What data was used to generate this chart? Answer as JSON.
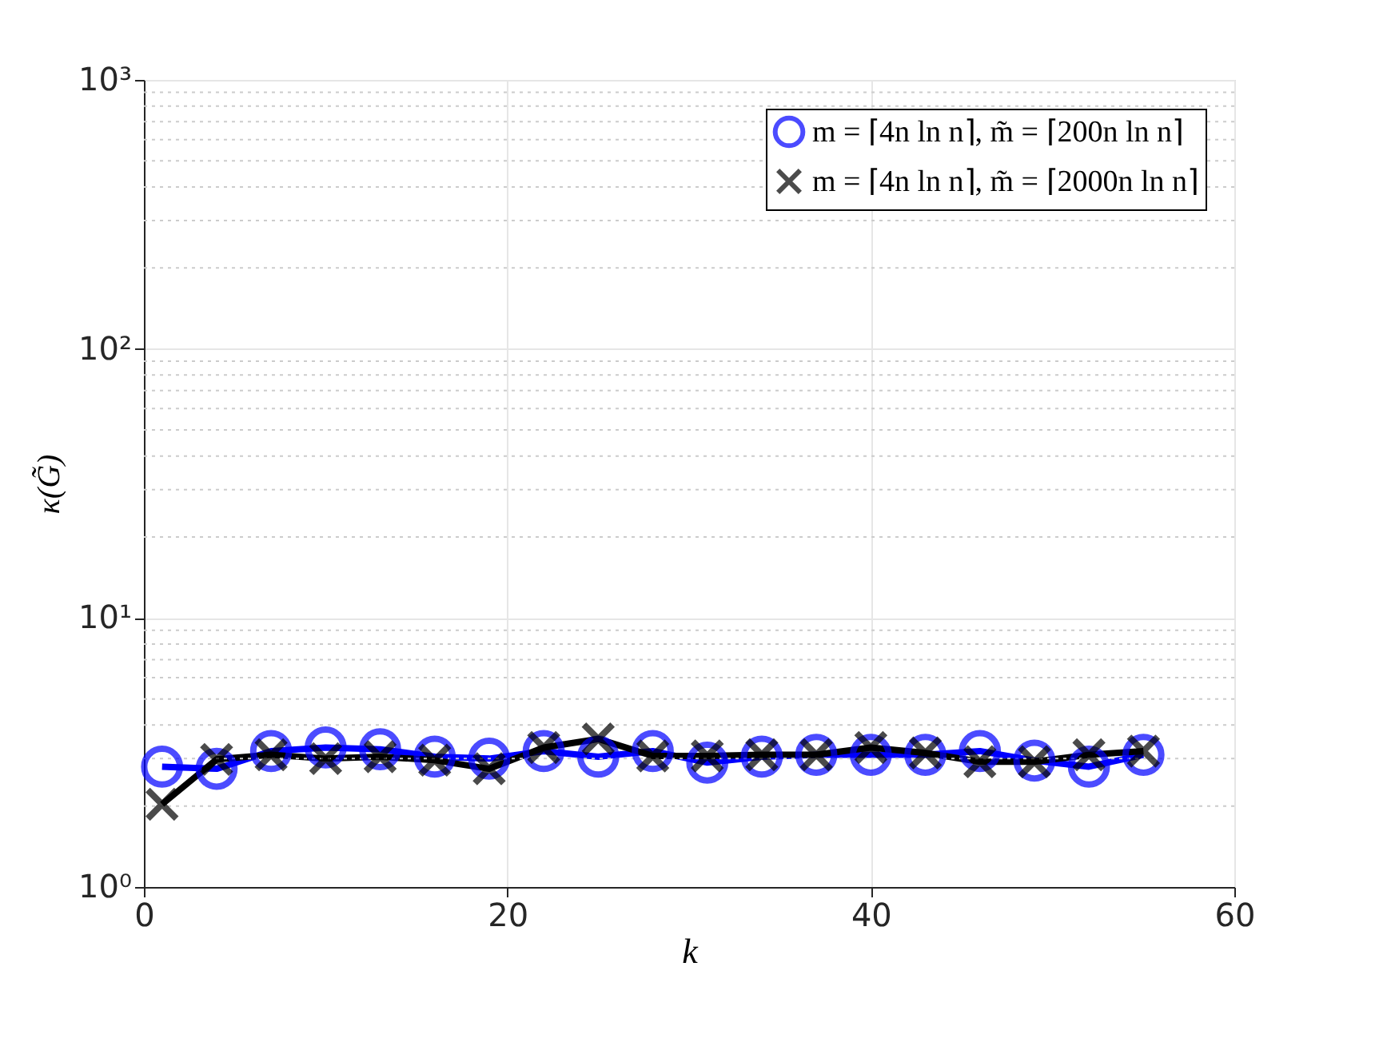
{
  "chart_data": {
    "type": "line",
    "xlabel": "k",
    "ylabel": "κ(G̃)",
    "x": [
      1,
      4,
      7,
      10,
      13,
      16,
      19,
      22,
      25,
      28,
      31,
      34,
      37,
      40,
      43,
      46,
      49,
      52,
      55
    ],
    "series": [
      {
        "name": "m = ⌈4n ln n⌉, m̃ = ⌈200n ln n⌉",
        "color": "#0000ff",
        "marker": "circle",
        "values": [
          2.8,
          2.75,
          3.2,
          3.3,
          3.25,
          3.05,
          3.0,
          3.2,
          3.05,
          3.2,
          2.9,
          3.05,
          3.1,
          3.1,
          3.1,
          3.2,
          2.95,
          2.8,
          3.1
        ]
      },
      {
        "name": "m = ⌈4n ln n⌉, m̃ = ⌈2000n ln n⌉",
        "color": "#000000",
        "marker": "cross",
        "values": [
          2.03,
          2.98,
          3.1,
          3.0,
          3.05,
          2.96,
          2.75,
          3.3,
          3.55,
          3.07,
          3.07,
          3.1,
          3.1,
          3.3,
          3.15,
          2.92,
          2.92,
          3.1,
          3.2
        ]
      }
    ],
    "xlim": [
      0,
      60
    ],
    "xticks": [
      0,
      20,
      40,
      60
    ],
    "log": "y",
    "ylim": [
      1,
      1000
    ],
    "yticks": [
      {
        "value": 1,
        "label": "10⁰"
      },
      {
        "value": 10,
        "label": "10¹"
      },
      {
        "value": 100,
        "label": "10²"
      },
      {
        "value": 1000,
        "label": "10³"
      }
    ],
    "grid": true,
    "legend": "top right",
    "line_style": "solid"
  }
}
